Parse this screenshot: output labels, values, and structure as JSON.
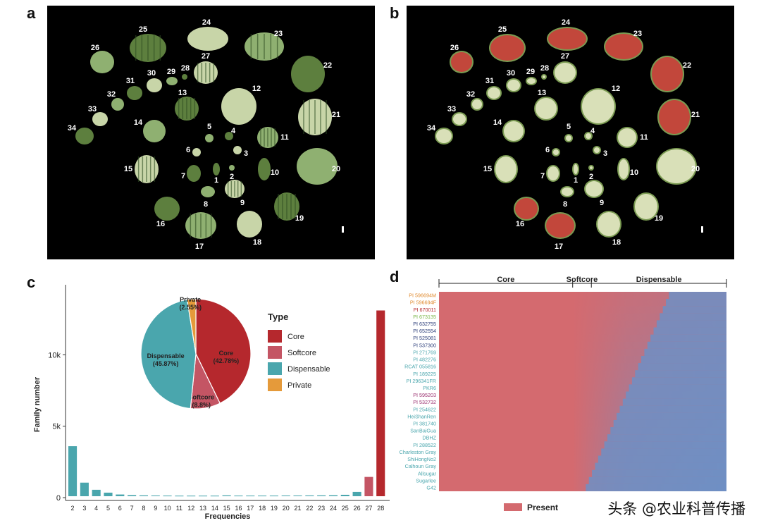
{
  "panels": {
    "a": "a",
    "b": "b",
    "c": "c",
    "d": "d"
  },
  "panel_a": {
    "labels": [
      "1",
      "2",
      "3",
      "4",
      "5",
      "6",
      "7",
      "8",
      "9",
      "10",
      "11",
      "12",
      "13",
      "14",
      "15",
      "16",
      "17",
      "18",
      "19",
      "20",
      "21",
      "22",
      "23",
      "24",
      "25",
      "26",
      "27",
      "28",
      "29",
      "30",
      "31",
      "32",
      "33",
      "34"
    ]
  },
  "panel_b": {
    "labels": [
      "1",
      "2",
      "3",
      "4",
      "5",
      "6",
      "7",
      "8",
      "9",
      "10",
      "11",
      "12",
      "13",
      "14",
      "15",
      "16",
      "17",
      "18",
      "19",
      "20",
      "21",
      "22",
      "23",
      "24",
      "25",
      "26",
      "27",
      "28",
      "29",
      "30",
      "31",
      "32",
      "33",
      "34"
    ]
  },
  "chart_data": [
    {
      "type": "bar",
      "panel": "c",
      "xlabel": "Frequencies",
      "ylabel": "Family number",
      "categories": [
        "2",
        "3",
        "4",
        "5",
        "6",
        "7",
        "8",
        "9",
        "10",
        "11",
        "12",
        "13",
        "14",
        "15",
        "16",
        "17",
        "18",
        "19",
        "20",
        "21",
        "22",
        "23",
        "24",
        "25",
        "26",
        "27",
        "28"
      ],
      "values": [
        3500,
        950,
        450,
        250,
        120,
        80,
        60,
        50,
        45,
        40,
        40,
        40,
        40,
        60,
        45,
        45,
        45,
        45,
        50,
        50,
        55,
        60,
        70,
        100,
        300,
        1350,
        13000
      ],
      "bar_types": [
        "Dispensable",
        "Dispensable",
        "Dispensable",
        "Dispensable",
        "Dispensable",
        "Dispensable",
        "Dispensable",
        "Dispensable",
        "Dispensable",
        "Dispensable",
        "Dispensable",
        "Dispensable",
        "Dispensable",
        "Dispensable",
        "Dispensable",
        "Dispensable",
        "Dispensable",
        "Dispensable",
        "Dispensable",
        "Dispensable",
        "Dispensable",
        "Dispensable",
        "Dispensable",
        "Dispensable",
        "Dispensable",
        "Softcore",
        "Core"
      ],
      "yticks": [
        {
          "value": 0,
          "label": "0"
        },
        {
          "value": 5000,
          "label": "5k"
        },
        {
          "value": 10000,
          "label": "10k"
        }
      ],
      "ylim": [
        0,
        14800
      ],
      "pie": {
        "slices": [
          {
            "name": "Core",
            "value": 42.78,
            "label": "Core\n(42.78%)"
          },
          {
            "name": "Softcore",
            "value": 8.8,
            "label": "Softcore\n(8.8%)"
          },
          {
            "name": "Dispensable",
            "value": 45.87,
            "label": "Dispensable\n(45.87%)"
          },
          {
            "name": "Private",
            "value": 2.55,
            "label": "Private\n(2.55%)"
          }
        ]
      },
      "legend": {
        "title": "Type",
        "position": "right",
        "entries": [
          {
            "name": "Core",
            "color": "#b5282d"
          },
          {
            "name": "Softcore",
            "color": "#c45564"
          },
          {
            "name": "Dispensable",
            "color": "#4aa6ad"
          },
          {
            "name": "Private",
            "color": "#e59a3a"
          }
        ]
      }
    },
    {
      "type": "heatmap",
      "panel": "d",
      "column_groups": [
        {
          "name": "Core",
          "start": 0.0,
          "end": 0.465
        },
        {
          "name": "Softcore",
          "start": 0.465,
          "end": 0.53
        },
        {
          "name": "Dispensable",
          "start": 0.53,
          "end": 1.0
        }
      ],
      "rows": [
        "PI 596694M",
        "PI 596694F",
        "PI 670011",
        "PI 673135",
        "PI 632755",
        "PI 652554",
        "PI 525081",
        "PI 537300",
        "PI 271769",
        "PI 482276",
        "RCAT 055816",
        "PI 189225",
        "PI 296341FR",
        "PKR6",
        "PI 595203",
        "PI 532732",
        "PI 254622",
        "HeiShanRen",
        "PI 381740",
        "SanBaiGua",
        "DBHZ",
        "PI 288522",
        "Charleston Gray",
        "ShiHongNo2",
        "Calhoun Gray",
        "Allsugar",
        "Sugarlee",
        "G42"
      ],
      "row_colors": [
        "#e08a2e",
        "#e08a2e",
        "#b5282d",
        "#7ab648",
        "#2c3e7a",
        "#2c3e7a",
        "#2c3e7a",
        "#2c3e7a",
        "#4aa6ad",
        "#4aa6ad",
        "#4aa6ad",
        "#4aa6ad",
        "#4aa6ad",
        "#4aa6ad",
        "#9b2f6f",
        "#9b2f6f",
        "#4aa6ad",
        "#4aa6ad",
        "#4aa6ad",
        "#4aa6ad",
        "#4aa6ad",
        "#4aa6ad",
        "#4aa6ad",
        "#4aa6ad",
        "#4aa6ad",
        "#4aa6ad",
        "#4aa6ad",
        "#4aa6ad"
      ],
      "legend": [
        {
          "name": "Present",
          "color": "#d46a6f"
        }
      ],
      "colors": {
        "present": "#d46a6f",
        "absent": "#6f8fc4"
      }
    }
  ],
  "watermark": "头条 @农业科普传播"
}
